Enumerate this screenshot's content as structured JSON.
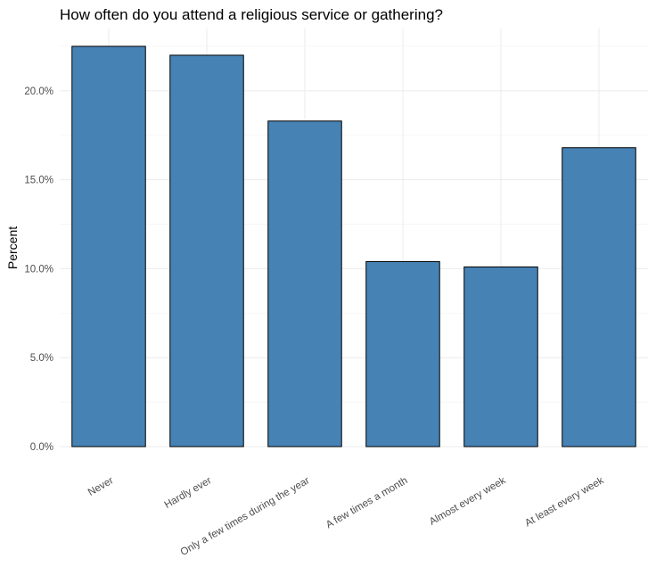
{
  "chart_data": {
    "type": "bar",
    "title": "How often do you attend a religious service or gathering?",
    "xlabel": "",
    "ylabel": "Percent",
    "categories": [
      "Never",
      "Hardly ever",
      "Only a few times during the year",
      "A few times a month",
      "Almost every week",
      "At least every week"
    ],
    "values": [
      22.5,
      22.0,
      18.3,
      10.4,
      10.1,
      16.8
    ],
    "ylim": [
      0,
      23.5
    ],
    "yticks": [
      0,
      5,
      10,
      15,
      20
    ],
    "ytick_labels": [
      "0.0%",
      "5.0%",
      "10.0%",
      "15.0%",
      "20.0%"
    ],
    "grid": true,
    "bar_color": "#4682B4",
    "bar_edge_color": "#000000"
  }
}
